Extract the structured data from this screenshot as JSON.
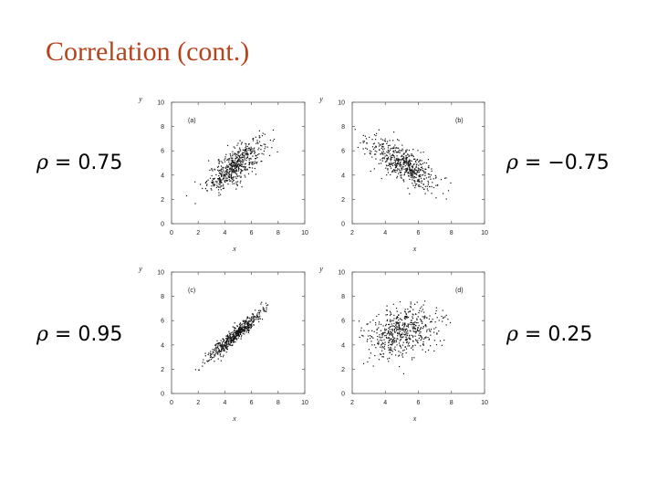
{
  "slide": {
    "title": "Correlation (cont.)"
  },
  "rho_symbol": "ρ",
  "chart_data": [
    {
      "type": "scatter",
      "panel": "(a)",
      "rho_text": " = 0.75",
      "xlabel": "x",
      "ylabel": "y",
      "xlim": [
        0,
        10
      ],
      "ylim": [
        0,
        10
      ],
      "xticks": [
        "0",
        "2",
        "4",
        "6",
        "8",
        "10"
      ],
      "yticks": [
        "0",
        "2",
        "4",
        "6",
        "8",
        "10"
      ],
      "rho": 0.75,
      "mean": [
        4.8,
        4.8
      ],
      "sd": [
        1.05,
        1.05
      ],
      "n": 550
    },
    {
      "type": "scatter",
      "panel": "(b)",
      "rho_text": " = −0.75",
      "xlabel": "x",
      "ylabel": "y",
      "xlim": [
        2,
        10
      ],
      "ylim": [
        0,
        10
      ],
      "xticks": [
        "2",
        "4",
        "6",
        "8",
        "10"
      ],
      "yticks": [
        "0",
        "2",
        "4",
        "6",
        "8",
        "10"
      ],
      "rho": -0.75,
      "mean": [
        5.0,
        5.0
      ],
      "sd": [
        1.05,
        1.05
      ],
      "n": 550
    },
    {
      "type": "scatter",
      "panel": "(c)",
      "rho_text": " = 0.95",
      "xlabel": "x",
      "ylabel": "y",
      "xlim": [
        0,
        10
      ],
      "ylim": [
        0,
        10
      ],
      "xticks": [
        "0",
        "2",
        "4",
        "6",
        "8",
        "10"
      ],
      "yticks": [
        "0",
        "2",
        "4",
        "6",
        "8",
        "10"
      ],
      "rho": 0.95,
      "mean": [
        4.8,
        4.8
      ],
      "sd": [
        1.05,
        1.05
      ],
      "n": 550
    },
    {
      "type": "scatter",
      "panel": "(d)",
      "rho_text": " = 0.25",
      "xlabel": "x",
      "ylabel": "y",
      "xlim": [
        2,
        10
      ],
      "ylim": [
        0,
        10
      ],
      "xticks": [
        "2",
        "4",
        "6",
        "8",
        "10"
      ],
      "yticks": [
        "0",
        "2",
        "4",
        "6",
        "8",
        "10"
      ],
      "rho": 0.25,
      "mean": [
        5.0,
        5.0
      ],
      "sd": [
        1.05,
        1.05
      ],
      "n": 550
    }
  ]
}
